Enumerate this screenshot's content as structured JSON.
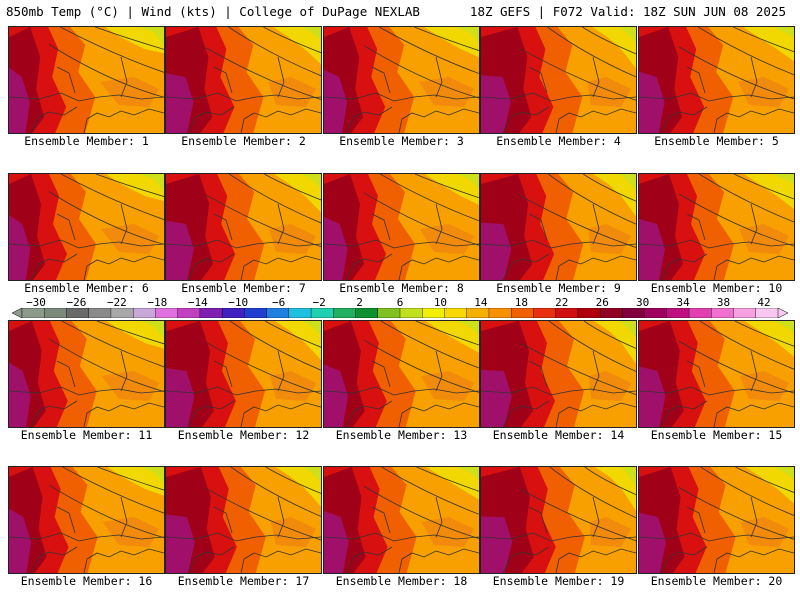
{
  "header": {
    "left": "850mb Temp (°C) | Wind (kts) | College of DuPage NEXLAB",
    "right": "18Z GEFS | F072 Valid: 18Z SUN JUN 08 2025"
  },
  "panels": [
    {
      "label": "Ensemble Member: 1"
    },
    {
      "label": "Ensemble Member: 2"
    },
    {
      "label": "Ensemble Member: 3"
    },
    {
      "label": "Ensemble Member: 4"
    },
    {
      "label": "Ensemble Member: 5"
    },
    {
      "label": "Ensemble Member: 6"
    },
    {
      "label": "Ensemble Member: 7"
    },
    {
      "label": "Ensemble Member: 8"
    },
    {
      "label": "Ensemble Member: 9"
    },
    {
      "label": "Ensemble Member: 10"
    },
    {
      "label": "Ensemble Member: 11"
    },
    {
      "label": "Ensemble Member: 12"
    },
    {
      "label": "Ensemble Member: 13"
    },
    {
      "label": "Ensemble Member: 14"
    },
    {
      "label": "Ensemble Member: 15"
    },
    {
      "label": "Ensemble Member: 16"
    },
    {
      "label": "Ensemble Member: 17"
    },
    {
      "label": "Ensemble Member: 18"
    },
    {
      "label": "Ensemble Member: 19"
    },
    {
      "label": "Ensemble Member: 20"
    }
  ],
  "colorbar": {
    "tick_labels": [
      "−30",
      "−26",
      "−22",
      "−18",
      "−14",
      "−10",
      "−6",
      "−2",
      "2",
      "6",
      "10",
      "14",
      "18",
      "22",
      "26",
      "30",
      "34",
      "38",
      "42"
    ],
    "colors": [
      "#8c9a8c",
      "#7a8a7a",
      "#6a6a6a",
      "#8a8a8a",
      "#a8a8a8",
      "#c8a8d8",
      "#e070e0",
      "#c040c0",
      "#8020b0",
      "#4020c0",
      "#2040d0",
      "#2080e0",
      "#20c0e0",
      "#20d0b0",
      "#20b060",
      "#109030",
      "#80c020",
      "#c0e020",
      "#f0f000",
      "#f8d800",
      "#f8b000",
      "#f89000",
      "#f06000",
      "#e83010",
      "#d01010",
      "#b00010",
      "#900020",
      "#800040",
      "#a00060",
      "#c01080",
      "#e040b0",
      "#f070d0",
      "#f8a0e0",
      "#f8c8f0"
    ]
  }
}
